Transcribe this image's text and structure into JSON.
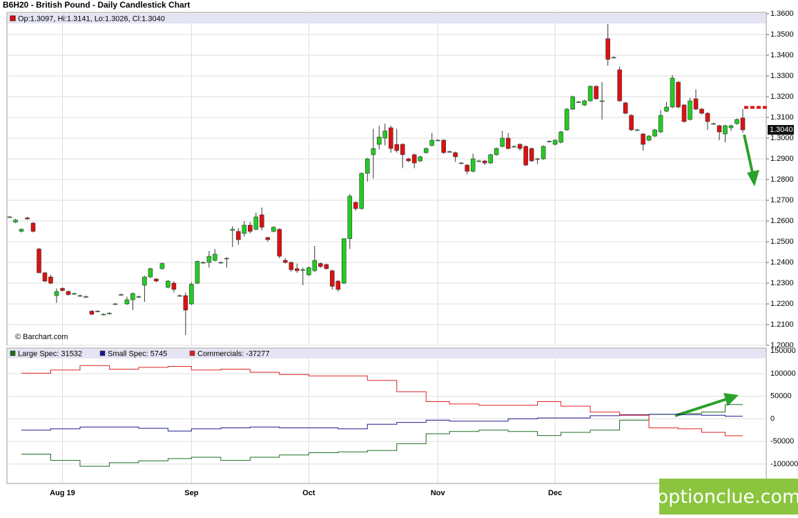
{
  "chart_data": {
    "type": "candlestick",
    "title": "B6H20 - British Pound - Daily Candlestick Chart",
    "ohlc_label": "Op:1.3097, Hi:1.3141, Lo:1.3026, Cl:1.3040",
    "last_label": "1.3040",
    "source": "© Barchart.com",
    "watermark": "optionclue.com",
    "up_color": "#22cc22",
    "down_color": "#dd1111",
    "ylim": [
      1.2,
      1.36
    ],
    "yticks": [
      {
        "value": 1.2,
        "label": "1.2000"
      },
      {
        "value": 1.21,
        "label": "1.2100"
      },
      {
        "value": 1.22,
        "label": "1.2200"
      },
      {
        "value": 1.23,
        "label": "1.2300"
      },
      {
        "value": 1.24,
        "label": "1.2400"
      },
      {
        "value": 1.25,
        "label": "1.2500"
      },
      {
        "value": 1.26,
        "label": "1.2600"
      },
      {
        "value": 1.27,
        "label": "1.2700"
      },
      {
        "value": 1.28,
        "label": "1.2800"
      },
      {
        "value": 1.29,
        "label": "1.2900"
      },
      {
        "value": 1.3,
        "label": "1.3000"
      },
      {
        "value": 1.31,
        "label": "1.3100"
      },
      {
        "value": 1.32,
        "label": "1.3200"
      },
      {
        "value": 1.33,
        "label": "1.3300"
      },
      {
        "value": 1.34,
        "label": "1.3400"
      },
      {
        "value": 1.35,
        "label": "1.3500"
      },
      {
        "value": 1.36,
        "label": "1.3600"
      }
    ],
    "xticks": [
      {
        "value": 9,
        "label": "Aug 19"
      },
      {
        "value": 31,
        "label": "Sep"
      },
      {
        "value": 51,
        "label": "Oct"
      },
      {
        "value": 73,
        "label": "Nov"
      },
      {
        "value": 93,
        "label": "Dec"
      }
    ],
    "grid": true,
    "candles": [
      [
        1.262,
        1.2625,
        1.2615,
        1.262
      ],
      [
        1.2595,
        1.261,
        1.259,
        1.2605
      ],
      [
        1.255,
        1.2565,
        1.2545,
        1.256
      ],
      [
        1.2615,
        1.262,
        1.2605,
        1.261
      ],
      [
        1.259,
        1.2595,
        1.2545,
        1.255
      ],
      [
        1.2465,
        1.247,
        1.235,
        1.235
      ],
      [
        1.235,
        1.2355,
        1.2305,
        1.231
      ],
      [
        1.233,
        1.234,
        1.2295,
        1.23
      ],
      [
        1.224,
        1.2275,
        1.2205,
        1.226
      ],
      [
        1.2275,
        1.228,
        1.226,
        1.2265
      ],
      [
        1.226,
        1.2265,
        1.224,
        1.2245
      ],
      [
        1.225,
        1.2255,
        1.2245,
        1.225
      ],
      [
        1.224,
        1.2245,
        1.2235,
        1.224
      ],
      [
        1.2235,
        1.224,
        1.223,
        1.2235
      ],
      [
        1.2165,
        1.217,
        1.2145,
        1.215
      ],
      [
        1.2165,
        1.217,
        1.216,
        1.2165
      ],
      [
        1.215,
        1.2155,
        1.2145,
        1.215
      ],
      [
        1.2155,
        1.216,
        1.215,
        1.2155
      ],
      [
        1.22,
        1.2205,
        1.2195,
        1.22
      ],
      [
        1.2245,
        1.225,
        1.224,
        1.2245
      ],
      [
        1.22,
        1.2235,
        1.2195,
        1.222
      ],
      [
        1.222,
        1.2255,
        1.217,
        1.225
      ],
      [
        1.2235,
        1.224,
        1.223,
        1.2235
      ],
      [
        1.229,
        1.2335,
        1.221,
        1.233
      ],
      [
        1.233,
        1.2375,
        1.2325,
        1.237
      ],
      [
        1.232,
        1.2325,
        1.2305,
        1.231
      ],
      [
        1.237,
        1.24,
        1.2365,
        1.2395
      ],
      [
        1.228,
        1.2315,
        1.2275,
        1.231
      ],
      [
        1.23,
        1.231,
        1.2255,
        1.227
      ],
      [
        1.224,
        1.2245,
        1.2235,
        1.224
      ],
      [
        1.224,
        1.2255,
        1.205,
        1.217
      ],
      [
        1.22,
        1.2305,
        1.2195,
        1.2295
      ],
      [
        1.23,
        1.241,
        1.2295,
        1.2405
      ],
      [
        1.24,
        1.2405,
        1.2395,
        1.24
      ],
      [
        1.24,
        1.2455,
        1.2375,
        1.243
      ],
      [
        1.241,
        1.2465,
        1.2405,
        1.244
      ],
      [
        1.24,
        1.2405,
        1.2395,
        1.24
      ],
      [
        1.242,
        1.2425,
        1.2375,
        1.242
      ],
      [
        1.2555,
        1.2575,
        1.2475,
        1.256
      ],
      [
        1.255,
        1.2565,
        1.2485,
        1.251
      ],
      [
        1.254,
        1.26,
        1.2525,
        1.258
      ],
      [
        1.258,
        1.2595,
        1.254,
        1.255
      ],
      [
        1.256,
        1.264,
        1.2555,
        1.262
      ],
      [
        1.263,
        1.2665,
        1.2555,
        1.257
      ],
      [
        1.252,
        1.2525,
        1.25,
        1.251
      ],
      [
        1.255,
        1.2575,
        1.2545,
        1.257
      ],
      [
        1.256,
        1.2565,
        1.242,
        1.243
      ],
      [
        1.241,
        1.242,
        1.2395,
        1.24
      ],
      [
        1.24,
        1.2405,
        1.2355,
        1.2365
      ],
      [
        1.237,
        1.2395,
        1.235,
        1.236
      ],
      [
        1.2365,
        1.2375,
        1.229,
        1.2365
      ],
      [
        1.234,
        1.238,
        1.2335,
        1.2375
      ],
      [
        1.236,
        1.248,
        1.2355,
        1.241
      ],
      [
        1.2395,
        1.24,
        1.2375,
        1.238
      ],
      [
        1.239,
        1.2395,
        1.2365,
        1.237
      ],
      [
        1.236,
        1.2365,
        1.227,
        1.2285
      ],
      [
        1.231,
        1.2315,
        1.226,
        1.227
      ],
      [
        1.23,
        1.2515,
        1.2295,
        1.2515
      ],
      [
        1.2515,
        1.273,
        1.2465,
        1.272
      ],
      [
        1.269,
        1.2695,
        1.265,
        1.266
      ],
      [
        1.266,
        1.2835,
        1.2655,
        1.283
      ],
      [
        1.283,
        1.2905,
        1.279,
        1.29
      ],
      [
        1.292,
        1.3045,
        1.2805,
        1.295
      ],
      [
        1.297,
        1.306,
        1.2945,
        1.3005
      ],
      [
        1.3,
        1.307,
        1.2965,
        1.3035
      ],
      [
        1.305,
        1.306,
        1.293,
        1.295
      ],
      [
        1.297,
        1.3045,
        1.293,
        1.294
      ],
      [
        1.297,
        1.2975,
        1.2855,
        1.292
      ],
      [
        1.29,
        1.2905,
        1.2885,
        1.289
      ],
      [
        1.292,
        1.2925,
        1.2855,
        1.288
      ],
      [
        1.289,
        1.2915,
        1.2885,
        1.291
      ],
      [
        1.293,
        1.2955,
        1.2925,
        1.295
      ],
      [
        1.2965,
        1.3025,
        1.296,
        1.299
      ],
      [
        1.299,
        1.2995,
        1.2985,
        1.299
      ],
      [
        1.299,
        1.2995,
        1.2925,
        1.293
      ],
      [
        1.2935,
        1.294,
        1.293,
        1.2935
      ],
      [
        1.293,
        1.2935,
        1.2885,
        1.291
      ],
      [
        1.288,
        1.2885,
        1.2875,
        1.288
      ],
      [
        1.287,
        1.2875,
        1.2825,
        1.284
      ],
      [
        1.284,
        1.2925,
        1.2835,
        1.29
      ],
      [
        1.289,
        1.2895,
        1.2885,
        1.289
      ],
      [
        1.289,
        1.2895,
        1.287,
        1.288
      ],
      [
        1.288,
        1.2925,
        1.2875,
        1.292
      ],
      [
        1.292,
        1.2955,
        1.2915,
        1.295
      ],
      [
        1.296,
        1.3035,
        1.2955,
        1.3
      ],
      [
        1.3,
        1.3025,
        1.2945,
        1.295
      ],
      [
        1.296,
        1.2965,
        1.2955,
        1.296
      ],
      [
        1.297,
        1.2975,
        1.294,
        1.295
      ],
      [
        1.296,
        1.2965,
        1.2865,
        1.287
      ],
      [
        1.295,
        1.2955,
        1.2885,
        1.289
      ],
      [
        1.29,
        1.2905,
        1.2875,
        1.29
      ],
      [
        1.29,
        1.2965,
        1.2895,
        1.296
      ],
      [
        1.2985,
        1.299,
        1.298,
        1.2985
      ],
      [
        1.297,
        1.2995,
        1.2965,
        1.299
      ],
      [
        1.298,
        1.3035,
        1.2975,
        1.303
      ],
      [
        1.304,
        1.3145,
        1.3035,
        1.314
      ],
      [
        1.314,
        1.3205,
        1.3135,
        1.32
      ],
      [
        1.3175,
        1.318,
        1.317,
        1.3175
      ],
      [
        1.316,
        1.3185,
        1.3155,
        1.318
      ],
      [
        1.318,
        1.3255,
        1.3175,
        1.325
      ],
      [
        1.325,
        1.3255,
        1.3185,
        1.319
      ],
      [
        1.318,
        1.327,
        1.309,
        1.318
      ],
      [
        1.348,
        1.355,
        1.335,
        1.338
      ],
      [
        1.339,
        1.3395,
        1.3385,
        1.339
      ],
      [
        1.333,
        1.3345,
        1.3175,
        1.318
      ],
      [
        1.317,
        1.3175,
        1.3115,
        1.312
      ],
      [
        1.311,
        1.3115,
        1.3035,
        1.304
      ],
      [
        1.304,
        1.3045,
        1.3035,
        1.304
      ],
      [
        1.302,
        1.3025,
        1.294,
        1.297
      ],
      [
        1.299,
        1.3015,
        1.2985,
        1.301
      ],
      [
        1.301,
        1.3045,
        1.3005,
        1.304
      ],
      [
        1.303,
        1.3135,
        1.3025,
        1.311
      ],
      [
        1.313,
        1.3175,
        1.3125,
        1.315
      ],
      [
        1.315,
        1.3305,
        1.3145,
        1.329
      ],
      [
        1.327,
        1.3275,
        1.3145,
        1.315
      ],
      [
        1.316,
        1.3165,
        1.3075,
        1.308
      ],
      [
        1.309,
        1.3195,
        1.3085,
        1.318
      ],
      [
        1.319,
        1.3235,
        1.3135,
        1.314
      ],
      [
        1.314,
        1.3145,
        1.3115,
        1.312
      ],
      [
        1.312,
        1.3125,
        1.304,
        1.308
      ],
      [
        1.307,
        1.3075,
        1.3065,
        1.307
      ],
      [
        1.306,
        1.3065,
        1.299,
        1.303
      ],
      [
        1.302,
        1.3065,
        1.298,
        1.306
      ],
      [
        1.305,
        1.3065,
        1.3035,
        1.306
      ],
      [
        1.307,
        1.3095,
        1.3065,
        1.309
      ],
      [
        1.3097,
        1.3141,
        1.3026,
        1.304
      ]
    ],
    "cot": {
      "type": "line",
      "step": true,
      "x": [
        2,
        7,
        12,
        17,
        22,
        27,
        31,
        36,
        41,
        46,
        51,
        56,
        61,
        66,
        71,
        75,
        80,
        85,
        90,
        94,
        99,
        104,
        109,
        114,
        118,
        122
      ],
      "ylim": [
        -143000,
        155000
      ],
      "yticks": [
        -100000,
        -50000,
        0,
        50000,
        100000,
        150000
      ],
      "series": [
        {
          "label": "Large Spec: 31532",
          "color": "#1a6b1a",
          "values": [
            -78000,
            -92000,
            -105000,
            -97000,
            -93000,
            -88000,
            -85000,
            -92000,
            -85000,
            -80000,
            -75000,
            -73000,
            -70000,
            -55000,
            -33000,
            -28000,
            -25000,
            -28000,
            -37000,
            -30000,
            -25000,
            -3000,
            10000,
            12000,
            15000,
            31532
          ]
        },
        {
          "label": "Small Spec: 5745",
          "color": "#1a1a8c",
          "values": [
            -25000,
            -22000,
            -18000,
            -18000,
            -21000,
            -27000,
            -22000,
            -20000,
            -18000,
            -20000,
            -20000,
            -22000,
            -12000,
            -8000,
            -3000,
            -5000,
            -5000,
            0,
            2000,
            2000,
            7000,
            9000,
            10000,
            9000,
            8000,
            5745
          ]
        },
        {
          "label": "Commercials: -37277",
          "color": "#dd2222",
          "values": [
            101000,
            108000,
            118000,
            110000,
            114000,
            116000,
            108000,
            110000,
            103000,
            98000,
            95000,
            95000,
            85000,
            60000,
            38000,
            33000,
            30000,
            30000,
            38000,
            28000,
            15000,
            8000,
            -20000,
            -22000,
            -30000,
            -37277
          ]
        }
      ]
    }
  }
}
